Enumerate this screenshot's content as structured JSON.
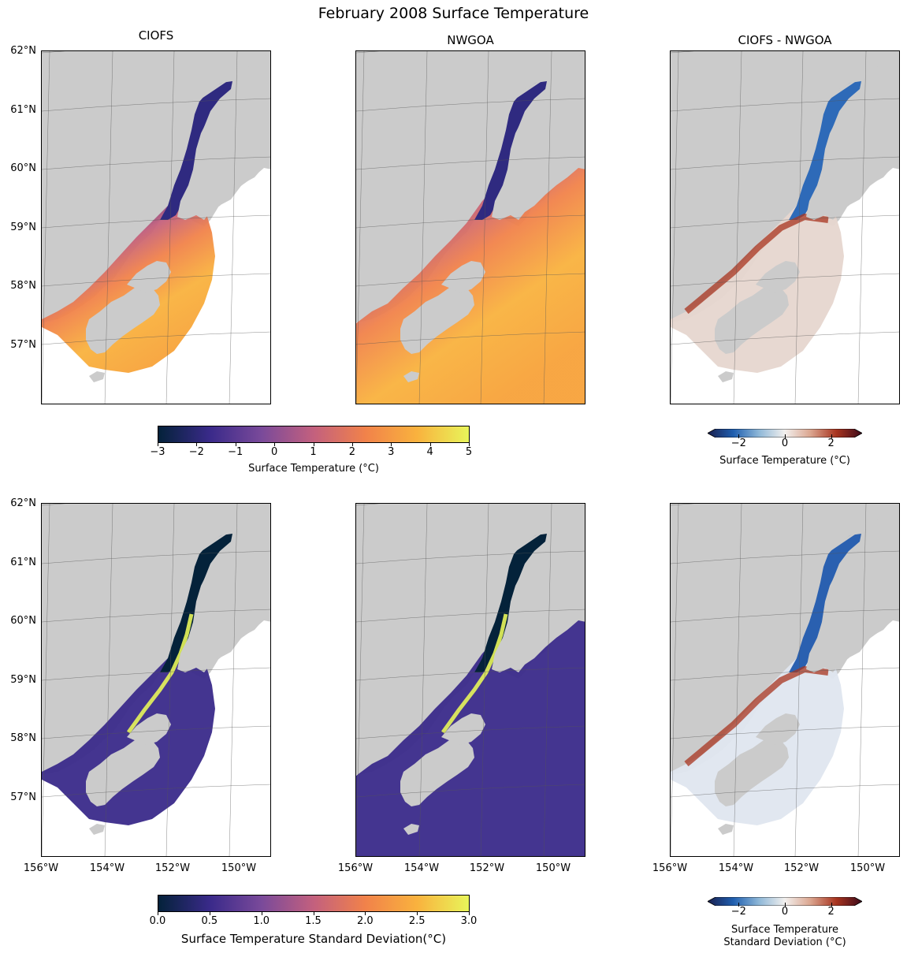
{
  "title": "February 2008 Surface Temperature",
  "panels": {
    "col_titles": [
      "CIOFS",
      "NWGOA",
      "CIOFS - NWGOA"
    ]
  },
  "chart_data": [
    {
      "type": "heatmap",
      "title": "CIOFS",
      "variable": "Surface Temperature (°C)",
      "colormap": "thermal",
      "vmin": -3,
      "vmax": 5,
      "lat_ticks": [
        "62°N",
        "61°N",
        "60°N",
        "59°N",
        "58°N",
        "57°N"
      ],
      "lon_range": [
        -156,
        -149
      ],
      "lat_range": [
        56,
        62
      ]
    },
    {
      "type": "heatmap",
      "title": "NWGOA",
      "variable": "Surface Temperature (°C)",
      "colormap": "thermal",
      "vmin": -3,
      "vmax": 5,
      "lon_range": [
        -156,
        -149
      ],
      "lat_range": [
        56,
        62
      ]
    },
    {
      "type": "heatmap",
      "title": "CIOFS - NWGOA",
      "variable": "Surface Temperature (°C)",
      "colormap": "balance",
      "vmin": -3,
      "vmax": 3,
      "lon_range": [
        -156,
        -149
      ],
      "lat_range": [
        56,
        62
      ]
    },
    {
      "type": "heatmap",
      "variable": "Surface Temperature Standard Deviation(°C)",
      "colormap": "thermal",
      "vmin": 0,
      "vmax": 3,
      "lat_ticks": [
        "62°N",
        "61°N",
        "60°N",
        "59°N",
        "58°N",
        "57°N"
      ],
      "lon_ticks": [
        "156°W",
        "154°W",
        "152°W",
        "150°W"
      ],
      "lon_range": [
        -156,
        -149
      ],
      "lat_range": [
        56,
        62
      ]
    },
    {
      "type": "heatmap",
      "variable": "Surface Temperature Standard Deviation(°C)",
      "colormap": "thermal",
      "vmin": 0,
      "vmax": 3,
      "lon_ticks": [
        "156°W",
        "154°W",
        "152°W",
        "150°W"
      ],
      "lon_range": [
        -156,
        -149
      ],
      "lat_range": [
        56,
        62
      ]
    },
    {
      "type": "heatmap",
      "variable": "Surface Temperature Standard Deviation (°C)",
      "colormap": "balance",
      "vmin": -3,
      "vmax": 3,
      "lon_ticks": [
        "156°W",
        "154°W",
        "152°W",
        "150°W"
      ],
      "lon_range": [
        -156,
        -149
      ],
      "lat_range": [
        56,
        62
      ]
    }
  ],
  "colorbars": {
    "top_main": {
      "ticks": [
        "−3",
        "−2",
        "−1",
        "0",
        "1",
        "2",
        "3",
        "4",
        "5"
      ],
      "label": "Surface Temperature (°C)"
    },
    "top_diff": {
      "ticks": [
        "−2",
        "0",
        "2"
      ],
      "label": "Surface Temperature (°C)"
    },
    "bottom_main": {
      "ticks": [
        "0.0",
        "0.5",
        "1.0",
        "1.5",
        "2.0",
        "2.5",
        "3.0"
      ],
      "label": "Surface Temperature Standard Deviation(°C)"
    },
    "bottom_diff": {
      "ticks": [
        "−2",
        "0",
        "2"
      ],
      "label_line1": "Surface Temperature",
      "label_line2": "Standard Deviation (°C)"
    }
  },
  "axes": {
    "lat_labels": [
      "62°N",
      "61°N",
      "60°N",
      "59°N",
      "58°N",
      "57°N"
    ],
    "lon_labels": [
      "156°W",
      "154°W",
      "152°W",
      "150°W"
    ]
  },
  "colors": {
    "land": "#cbcbcb",
    "thermal_stops": [
      "#04223a",
      "#3a2a8a",
      "#7a4a9a",
      "#c3607e",
      "#f1824a",
      "#f9b23e",
      "#e8f55a"
    ],
    "balance_stops": [
      "#1a1f4e",
      "#1f5fb0",
      "#8fb8d8",
      "#f2f0ee",
      "#dba58f",
      "#a8341f",
      "#3d0a1a"
    ]
  }
}
